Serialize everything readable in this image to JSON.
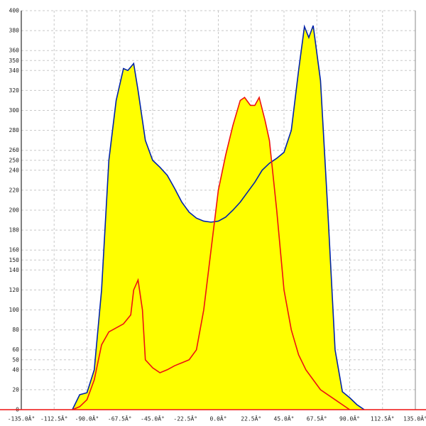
{
  "chart_data": {
    "type": "area",
    "fill_color": "#ffff00",
    "grid": true,
    "xlim": [
      -135,
      135
    ],
    "ylim": [
      0,
      400
    ],
    "xticks": [
      {
        "value": -135,
        "label": "-135.0Â°"
      },
      {
        "value": -112.5,
        "label": "-112.5Â°"
      },
      {
        "value": -90,
        "label": "-90.0Â°"
      },
      {
        "value": -67.5,
        "label": "-67.5Â°"
      },
      {
        "value": -45,
        "label": "-45.0Â°"
      },
      {
        "value": -22.5,
        "label": "-22.5Â°"
      },
      {
        "value": 0,
        "label": "0.0Â°"
      },
      {
        "value": 22.5,
        "label": "22.5Â°"
      },
      {
        "value": 45,
        "label": "45.0Â°"
      },
      {
        "value": 67.5,
        "label": "67.5Â°"
      },
      {
        "value": 90,
        "label": "90.0Â°"
      },
      {
        "value": 112.5,
        "label": "112.5Â°"
      },
      {
        "value": 135,
        "label": "135.0Â°"
      }
    ],
    "yticks": [
      0,
      20,
      40,
      50,
      60,
      80,
      100,
      120,
      140,
      150,
      160,
      180,
      200,
      220,
      240,
      250,
      260,
      280,
      300,
      320,
      340,
      350,
      360,
      380,
      400
    ],
    "series": [
      {
        "color": "#0022aa",
        "x": [
          -100,
          -95,
          -90,
          -85,
          -80,
          -75,
          -70,
          -65,
          -62,
          -58,
          -55,
          -50,
          -45,
          -40,
          -35,
          -30,
          -25,
          -20,
          -15,
          -10,
          -5,
          0,
          5,
          10,
          15,
          20,
          25,
          30,
          35,
          40,
          45,
          50,
          55,
          59,
          62,
          65,
          70,
          75,
          80,
          85,
          90,
          95,
          100
        ],
        "values": [
          0,
          15,
          17,
          40,
          120,
          250,
          310,
          342,
          340,
          347,
          320,
          270,
          250,
          243,
          235,
          222,
          208,
          198,
          192,
          189,
          188,
          189,
          193,
          200,
          208,
          218,
          228,
          240,
          247,
          252,
          258,
          280,
          340,
          384,
          373,
          385,
          330,
          200,
          60,
          18,
          12,
          5,
          0
        ]
      },
      {
        "color": "#ee1111",
        "x": [
          -100,
          -95,
          -90,
          -85,
          -80,
          -75,
          -70,
          -65,
          -60,
          -58,
          -55,
          -52,
          -50,
          -45,
          -40,
          -35,
          -30,
          -25,
          -20,
          -15,
          -10,
          -5,
          0,
          5,
          10,
          15,
          18,
          22,
          25,
          28,
          32,
          35,
          40,
          45,
          50,
          55,
          60,
          65,
          70,
          75,
          80,
          85,
          90
        ],
        "values": [
          0,
          3,
          10,
          30,
          65,
          78,
          82,
          86,
          95,
          120,
          130,
          100,
          50,
          42,
          37,
          40,
          44,
          47,
          50,
          60,
          100,
          160,
          220,
          255,
          285,
          310,
          313,
          305,
          305,
          313,
          290,
          270,
          200,
          120,
          80,
          55,
          40,
          30,
          20,
          15,
          10,
          5,
          0
        ]
      }
    ]
  }
}
